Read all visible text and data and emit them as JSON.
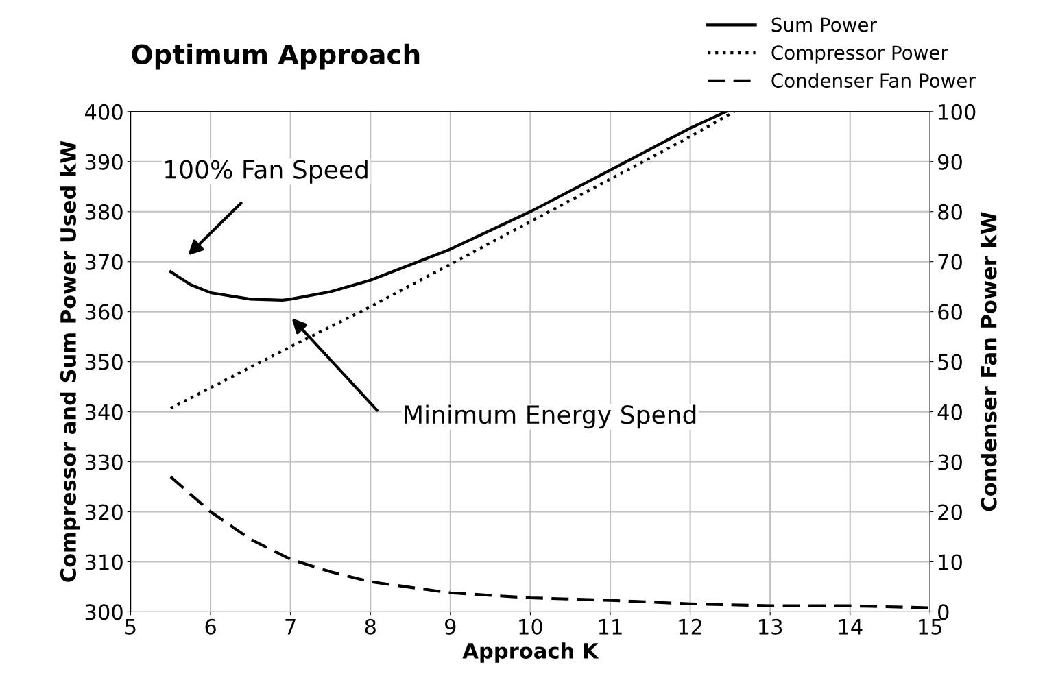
{
  "chart_data": {
    "type": "line",
    "title": "Optimum Approach",
    "xlabel": "Approach K",
    "ylabel": "Compressor and Sum Power Used kW",
    "y2label": "Condenser Fan Power kW",
    "xlim": [
      5,
      15
    ],
    "xticks": [
      5,
      6,
      7,
      8,
      9,
      10,
      11,
      12,
      13,
      14,
      15
    ],
    "ylim": [
      300,
      400
    ],
    "yticks": [
      300,
      310,
      320,
      330,
      340,
      350,
      360,
      370,
      380,
      390,
      400
    ],
    "y2lim": [
      0,
      100
    ],
    "y2ticks": [
      0,
      10,
      20,
      30,
      40,
      50,
      60,
      70,
      80,
      90,
      100
    ],
    "grid": true,
    "legend": "top right",
    "series": [
      {
        "name": "Sum Power",
        "color": "#000000",
        "line_style": "solid",
        "x": [
          5.5,
          5.75,
          6,
          6.5,
          6.9,
          7,
          7.5,
          8,
          9,
          10,
          11,
          12,
          12.45
        ],
        "values": [
          368,
          365.4,
          363.8,
          362.5,
          362.3,
          362.5,
          364,
          366.3,
          372.5,
          380,
          388.3,
          396.7,
          400
        ]
      },
      {
        "name": "Compressor Power",
        "color": "#000000",
        "line_style": "dotted",
        "x": [
          5.5,
          7,
          8,
          9,
          10,
          11,
          12,
          12.55
        ],
        "values": [
          340.7,
          353,
          361,
          369.5,
          378,
          386.5,
          395,
          400
        ]
      },
      {
        "name": "Condenser Fan Power",
        "color": "#000000",
        "line_style": "dashed",
        "axis": "y2",
        "x": [
          5.5,
          6,
          6.5,
          7,
          7.5,
          8,
          9,
          10,
          11,
          12,
          13,
          14,
          15
        ],
        "values": [
          27,
          20,
          14.5,
          10.5,
          8,
          6,
          3.8,
          2.8,
          2.3,
          1.6,
          1.2,
          1.2,
          0.8
        ]
      }
    ],
    "annotations": [
      "100% Fan Speed",
      "Minimum Energy Spend"
    ]
  }
}
